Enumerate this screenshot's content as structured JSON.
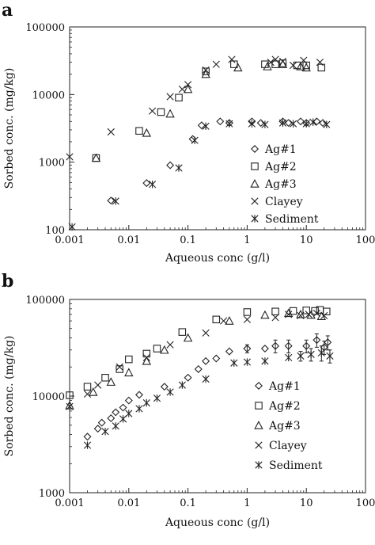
{
  "chart_data": [
    {
      "panel_label": "a",
      "type": "scatter",
      "xlabel": "Aqueous conc (g/l)",
      "ylabel": "Sorbed conc. (mg/kg)",
      "xscale": "log",
      "yscale": "log",
      "xlim": [
        0.001,
        100
      ],
      "ylim": [
        100,
        100000
      ],
      "xticks": [
        "0.001",
        "0.01",
        "0.1",
        "1",
        "10",
        "100"
      ],
      "yticks": [
        "100",
        "1000",
        "10000",
        "100000"
      ],
      "legend_position": "right",
      "series": [
        {
          "name": "Ag#1",
          "marker": "diamond",
          "points": [
            [
              0.005,
              270
            ],
            [
              0.02,
              490
            ],
            [
              0.05,
              900
            ],
            [
              0.12,
              2200
            ],
            [
              0.17,
              3500
            ],
            [
              0.35,
              4000
            ],
            [
              0.5,
              3800
            ],
            [
              1.2,
              4000
            ],
            [
              1.7,
              3800
            ],
            [
              4,
              4000
            ],
            [
              5,
              3800
            ],
            [
              8,
              4000
            ],
            [
              10,
              3800
            ],
            [
              15,
              4000
            ],
            [
              19,
              3800
            ]
          ],
          "errors": [
            0,
            0,
            0,
            0,
            0,
            0,
            0,
            0,
            0,
            0,
            0,
            0,
            0,
            0,
            0
          ]
        },
        {
          "name": "Ag#2",
          "marker": "square",
          "points": [
            [
              0.0028,
              1150
            ],
            [
              0.015,
              2900
            ],
            [
              0.035,
              5500
            ],
            [
              0.07,
              9000
            ],
            [
              0.2,
              22000
            ],
            [
              0.6,
              28000
            ],
            [
              2,
              28000
            ],
            [
              3,
              28000
            ],
            [
              4,
              29000
            ],
            [
              7,
              27000
            ],
            [
              10,
              27000
            ],
            [
              18,
              25000
            ]
          ]
        },
        {
          "name": "Ag#3",
          "marker": "triangle",
          "points": [
            [
              0.0028,
              1150
            ],
            [
              0.02,
              2700
            ],
            [
              0.05,
              5200
            ],
            [
              0.1,
              12000
            ],
            [
              0.2,
              20000
            ],
            [
              0.7,
              25000
            ],
            [
              2.2,
              26000
            ],
            [
              4,
              28000
            ],
            [
              8,
              26000
            ],
            [
              10,
              25000
            ]
          ]
        },
        {
          "name": "Clayey",
          "marker": "x",
          "points": [
            [
              0.001,
              1200
            ],
            [
              0.005,
              2800
            ],
            [
              0.025,
              5700
            ],
            [
              0.05,
              9300
            ],
            [
              0.08,
              12000
            ],
            [
              0.1,
              14000
            ],
            [
              0.2,
              23000
            ],
            [
              0.3,
              28000
            ],
            [
              0.55,
              33000
            ],
            [
              2.5,
              30000
            ],
            [
              3,
              33000
            ],
            [
              4,
              31000
            ],
            [
              6,
              27000
            ],
            [
              9,
              32000
            ],
            [
              17,
              30000
            ]
          ]
        },
        {
          "name": "Sediment",
          "marker": "star",
          "points": [
            [
              0.0011,
              110
            ],
            [
              0.006,
              265
            ],
            [
              0.025,
              470
            ],
            [
              0.07,
              820
            ],
            [
              0.13,
              2100
            ],
            [
              0.2,
              3400
            ],
            [
              0.5,
              3700
            ],
            [
              1.2,
              3700
            ],
            [
              2,
              3600
            ],
            [
              4,
              3800
            ],
            [
              6,
              3700
            ],
            [
              10,
              3700
            ],
            [
              13,
              3900
            ],
            [
              22,
              3600
            ]
          ]
        }
      ],
      "legend": [
        "Ag#1",
        "Ag#2",
        "Ag#3",
        "Clayey",
        "Sediment"
      ]
    },
    {
      "panel_label": "b",
      "type": "scatter",
      "xlabel": "Aqueous conc (g/l)",
      "ylabel": "Sorbed conc. (mg/kg)",
      "xscale": "log",
      "yscale": "log",
      "xlim": [
        0.001,
        100
      ],
      "ylim": [
        1000,
        100000
      ],
      "xticks": [
        "0.001",
        "0.01",
        "0.1",
        "1",
        "10",
        "100"
      ],
      "yticks": [
        "1000",
        "10000",
        "100000"
      ],
      "legend_position": "right",
      "series": [
        {
          "name": "Ag#1",
          "marker": "diamond",
          "points": [
            [
              0.002,
              3800
            ],
            [
              0.003,
              4600
            ],
            [
              0.0035,
              5300
            ],
            [
              0.005,
              5900
            ],
            [
              0.006,
              6800
            ],
            [
              0.008,
              7600
            ],
            [
              0.01,
              9000
            ],
            [
              0.015,
              10300
            ],
            [
              0.04,
              12500
            ],
            [
              0.1,
              15500
            ],
            [
              0.15,
              19000
            ],
            [
              0.2,
              23000
            ],
            [
              0.3,
              24500
            ],
            [
              0.5,
              29000
            ],
            [
              1,
              31000
            ],
            [
              2,
              31000
            ],
            [
              3,
              33000
            ],
            [
              5,
              33000
            ],
            [
              10,
              33000
            ],
            [
              15,
              38000
            ],
            [
              20,
              32000
            ],
            [
              23,
              36000
            ]
          ],
          "errors": [
            0,
            0,
            0,
            0,
            0,
            0,
            0,
            0,
            0,
            0,
            0,
            0,
            0,
            0,
            3000,
            0,
            5000,
            5000,
            5000,
            6000,
            5000,
            6000
          ]
        },
        {
          "name": "Ag#2",
          "marker": "square",
          "points": [
            [
              0.001,
              10200
            ],
            [
              0.002,
              12500
            ],
            [
              0.004,
              15500
            ],
            [
              0.007,
              19000
            ],
            [
              0.01,
              24000
            ],
            [
              0.02,
              27500
            ],
            [
              0.03,
              31000
            ],
            [
              0.08,
              46000
            ],
            [
              0.3,
              62000
            ],
            [
              1,
              74000
            ],
            [
              3,
              75000
            ],
            [
              6,
              76000
            ],
            [
              10,
              77000
            ],
            [
              14,
              76000
            ],
            [
              17,
              78000
            ],
            [
              22,
              75000
            ]
          ]
        },
        {
          "name": "Ag#3",
          "marker": "triangle",
          "points": [
            [
              0.001,
              8000
            ],
            [
              0.0025,
              11000
            ],
            [
              0.005,
              14000
            ],
            [
              0.01,
              17500
            ],
            [
              0.02,
              23000
            ],
            [
              0.04,
              30000
            ],
            [
              0.1,
              40000
            ],
            [
              0.5,
              60000
            ],
            [
              2,
              69000
            ],
            [
              5,
              72000
            ],
            [
              8,
              70000
            ],
            [
              12,
              69000
            ],
            [
              18,
              67000
            ]
          ]
        },
        {
          "name": "Clayey",
          "marker": "x",
          "points": [
            [
              0.002,
              10500
            ],
            [
              0.003,
              13000
            ],
            [
              0.007,
              20000
            ],
            [
              0.02,
              25000
            ],
            [
              0.05,
              34000
            ],
            [
              0.2,
              45000
            ],
            [
              0.4,
              60000
            ],
            [
              1,
              62000
            ],
            [
              3,
              65000
            ],
            [
              5,
              70000
            ],
            [
              8,
              68000
            ],
            [
              11,
              70000
            ],
            [
              15,
              72000
            ],
            [
              20,
              68000
            ]
          ]
        },
        {
          "name": "Sediment",
          "marker": "star",
          "points": [
            [
              0.001,
              7800
            ],
            [
              0.002,
              3100
            ],
            [
              0.004,
              4300
            ],
            [
              0.006,
              4900
            ],
            [
              0.008,
              5800
            ],
            [
              0.01,
              6600
            ],
            [
              0.015,
              7400
            ],
            [
              0.02,
              8500
            ],
            [
              0.03,
              9500
            ],
            [
              0.05,
              11000
            ],
            [
              0.08,
              13000
            ],
            [
              0.2,
              15000
            ],
            [
              0.6,
              22000
            ],
            [
              1,
              22500
            ],
            [
              2,
              23000
            ],
            [
              5,
              25000
            ],
            [
              8,
              26000
            ],
            [
              12,
              27000
            ],
            [
              18,
              28000
            ],
            [
              25,
              26000
            ]
          ],
          "errors": [
            0,
            0,
            0,
            0,
            0,
            0,
            0,
            0,
            0,
            0,
            0,
            0,
            0,
            0,
            0,
            0,
            3000,
            4000,
            5000,
            4000
          ]
        }
      ],
      "legend": [
        "Ag#1",
        "Ag#2",
        "Ag#3",
        "Clayey",
        "Sediment"
      ]
    }
  ]
}
